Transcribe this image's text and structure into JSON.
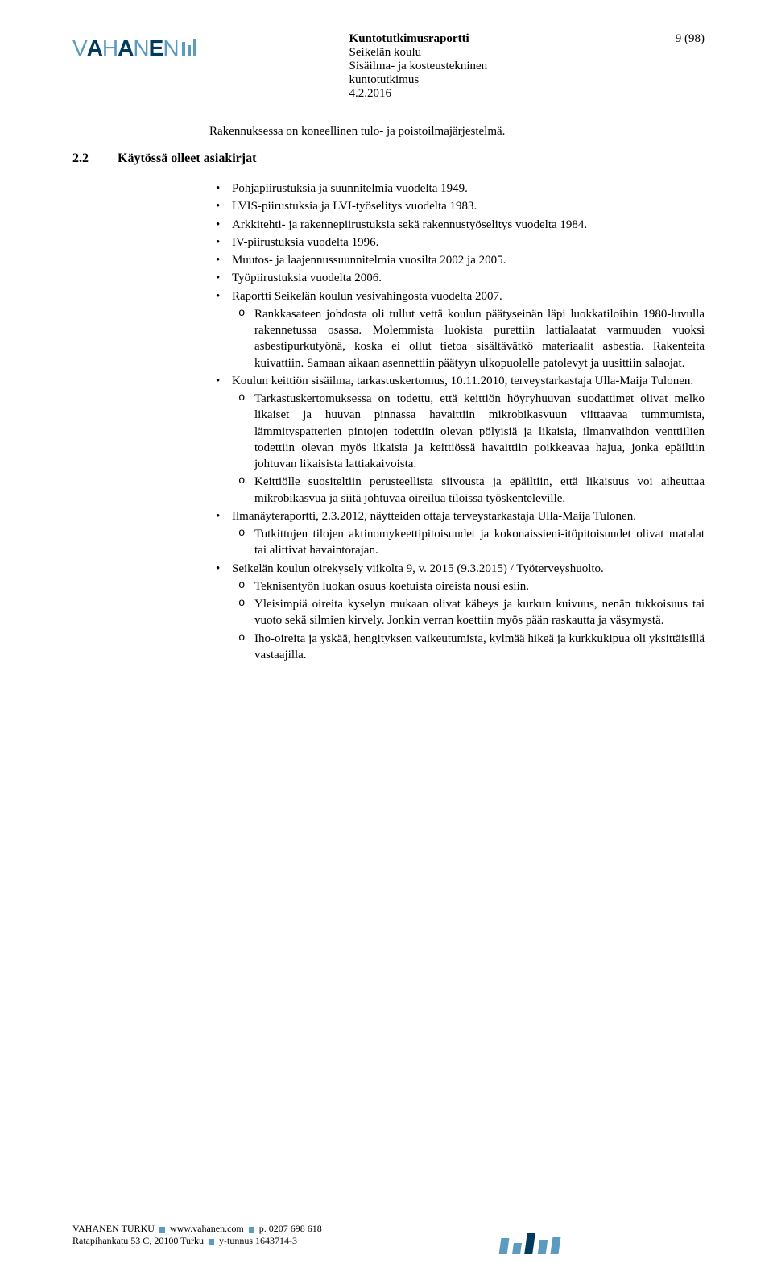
{
  "logo": {
    "letters": [
      "V",
      "A",
      "H",
      "A",
      "N",
      "E",
      "N"
    ]
  },
  "header": {
    "title": "Kuntotutkimusraportti",
    "sub1": "Seikelän koulu",
    "sub2": "Sisäilma- ja kosteustekninen",
    "sub3": "kuntotutkimus",
    "date": "4.2.2016",
    "page": "9 (98)"
  },
  "intro": "Rakennuksessa on koneellinen tulo- ja poistoilmajärjestelmä.",
  "section": {
    "num": "2.2",
    "title": "Käytössä olleet asiakirjat"
  },
  "items": {
    "i0": "Pohjapiirustuksia ja suunnitelmia vuodelta 1949.",
    "i1": "LVIS-piirustuksia ja LVI-työselitys vuodelta 1983.",
    "i2": "Arkkitehti- ja rakennepiirustuksia sekä rakennustyöselitys vuodelta 1984.",
    "i3": "IV-piirustuksia vuodelta 1996.",
    "i4": "Muutos- ja laajennussuunnitelmia vuosilta 2002 ja 2005.",
    "i5": "Työpiirustuksia vuodelta 2006.",
    "i6": "Raportti Seikelän koulun vesivahingosta vuodelta 2007.",
    "i6s0": "Rankkasateen johdosta oli tullut vettä koulun päätyseinän läpi luokkatiloihin 1980-luvulla rakennetussa osassa. Molemmista luokista purettiin lattialaatat varmuuden vuoksi asbestipurkutyönä, koska ei ollut tietoa sisältävätkö materiaalit asbestia. Rakenteita kuivattiin. Samaan aikaan asennettiin päätyyn ulkopuolelle patolevyt ja uusittiin salaojat.",
    "i7": "Koulun keittiön sisäilma, tarkastuskertomus, 10.11.2010, terveystarkastaja Ulla-Maija Tulonen.",
    "i7s0": "Tarkastuskertomuksessa on todettu, että keittiön höyryhuuvan suodattimet olivat melko likaiset ja huuvan pinnassa havaittiin mikrobikasvuun viittaavaa tummumista, lämmityspatterien pintojen todettiin olevan pölyisiä ja likaisia, ilmanvaihdon venttiilien todettiin olevan myös likaisia ja keittiössä havaittiin poikkeavaa hajua, jonka epäiltiin johtuvan likaisista lattiakaivoista.",
    "i7s1": "Keittiölle suositeltiin perusteellista siivousta ja epäiltiin, että likaisuus voi aiheuttaa mikrobikasvua ja siitä johtuvaa oireilua tiloissa työskenteleville.",
    "i8": "Ilmanäyteraportti, 2.3.2012, näytteiden ottaja terveystarkastaja Ulla-Maija Tulonen.",
    "i8s0": "Tutkittujen tilojen aktinomykeettipitoisuudet ja kokonaissieni-itöpitoisuudet olivat matalat tai alittivat havaintorajan.",
    "i9": "Seikelän koulun oirekysely viikolta 9, v. 2015 (9.3.2015) / Työterveyshuolto.",
    "i9s0": "Teknisentyön luokan osuus koetuista oireista nousi esiin.",
    "i9s1": "Yleisimpiä oireita kyselyn mukaan olivat käheys ja kurkun kuivuus, nenän tukkoisuus tai vuoto sekä silmien kirvely. Jonkin verran koettiin myös pään raskautta ja väsymystä.",
    "i9s2": "Iho-oireita ja yskää, hengityksen vaikeutumista, kylmää hikeä ja kurkkukipua oli yksittäisillä vastaajilla."
  },
  "footer": {
    "company": "VAHANEN TURKU",
    "url": "www.vahanen.com",
    "phone_label": "p.",
    "phone": "0207 698 618",
    "addr": "Ratapihankatu 53 C, 20100 Turku",
    "vat_label": "y-tunnus",
    "vat": "1643714-3"
  }
}
